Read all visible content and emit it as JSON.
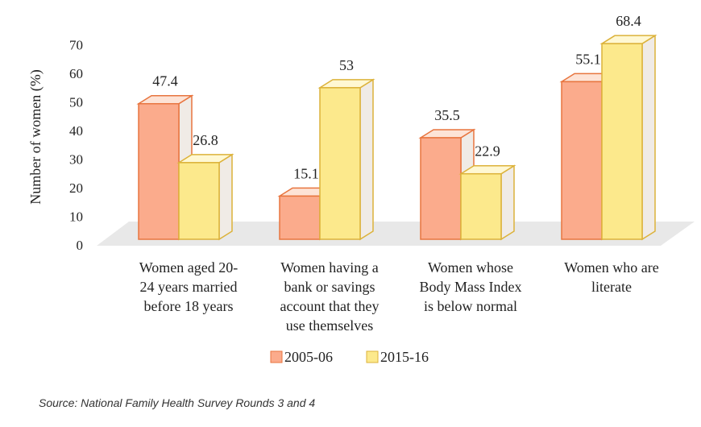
{
  "chart_data": {
    "type": "bar",
    "style": "3d-clustered",
    "ylabel": "Number of women (%)",
    "xlabel": "",
    "ylim": [
      0,
      70
    ],
    "yticks": [
      0,
      10,
      20,
      30,
      40,
      50,
      60,
      70
    ],
    "grid": false,
    "legend_position": "bottom",
    "categories": [
      [
        "Women aged 20-",
        "24 years married",
        "before 18 years"
      ],
      [
        "Women having a",
        "bank or savings",
        "account that they",
        "use themselves"
      ],
      [
        "Women whose",
        "Body Mass Index",
        "is below normal"
      ],
      [
        "Women who are",
        "literate"
      ]
    ],
    "series": [
      {
        "name": "2005-06",
        "values": [
          47.4,
          15.1,
          35.5,
          55.1
        ],
        "labels": [
          "47.4",
          "15.1",
          "35.5",
          "55.1"
        ]
      },
      {
        "name": "2015-16",
        "values": [
          26.8,
          53,
          22.9,
          68.4
        ],
        "labels": [
          "26.8",
          "53",
          "22.9",
          "68.4"
        ]
      }
    ],
    "colors": {
      "s0_front": "#fbab8c",
      "s0_edge": "#e8753f",
      "s0_top": "#fde3d6",
      "s1_front": "#fce98c",
      "s1_edge": "#dcb23a",
      "s1_top": "#fff8d3",
      "side": "#f0ebe6",
      "floor": "#e8e8e8"
    }
  },
  "source": "Source: National Family Health Survey Rounds 3 and 4"
}
